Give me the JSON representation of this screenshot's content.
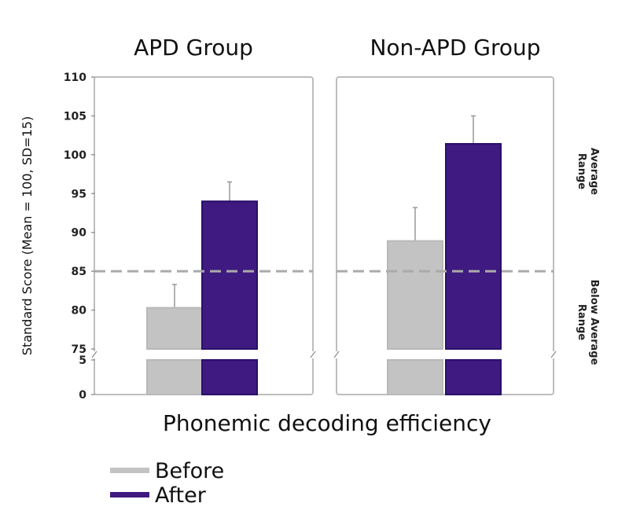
{
  "chart_data": {
    "type": "bar",
    "title": "",
    "xlabel": "Phonemic decoding efficiency",
    "ylabel": "Standard Score (Mean = 100, SD=15)",
    "yticks_upper": [
      "75",
      "80",
      "85",
      "90",
      "95",
      "100",
      "105",
      "110"
    ],
    "yticks_lower": [
      "0",
      "5"
    ],
    "ylim": [
      0,
      110
    ],
    "axis_break": [
      5,
      75
    ],
    "reference_line": 85,
    "grid": false,
    "categories": [
      "APD Group",
      "Non-APD Group"
    ],
    "series": [
      {
        "name": "Before",
        "color": "#c3c3c3",
        "values": [
          80.3,
          88.9
        ],
        "error_top": [
          83.3,
          93.2
        ]
      },
      {
        "name": "After",
        "color": "#3f1a80",
        "values": [
          94.0,
          101.4
        ],
        "error_top": [
          96.5,
          105.0
        ]
      }
    ],
    "range_labels": {
      "upper": "Average Range",
      "lower": "Below Average Range"
    },
    "legend_placement": "bottom-left"
  }
}
